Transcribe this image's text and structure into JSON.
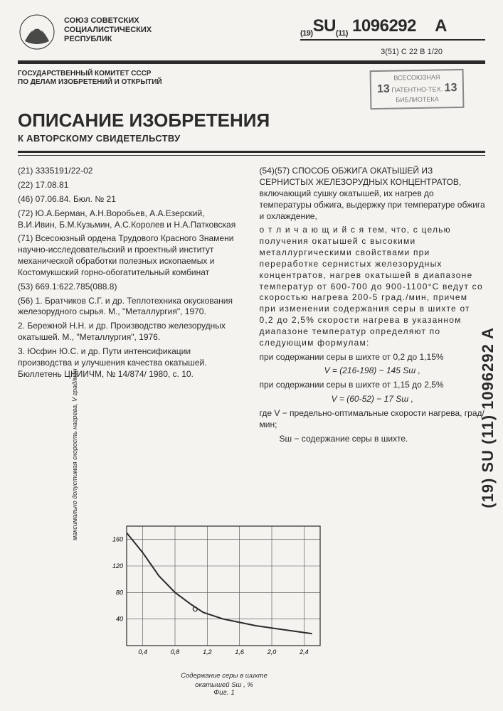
{
  "header": {
    "union_label": "СОЮЗ СОВЕТСКИХ\nСОЦИАЛИСТИЧЕСКИХ\nРЕСПУБЛИК",
    "patent_prefix": "(19)",
    "patent_country": "SU",
    "patent_sub": "(11)",
    "patent_number": "1096292",
    "patent_suffix": "A",
    "ipc_label": "3(51) С 22 В 1/20"
  },
  "committee": {
    "line1": "ГОСУДАРСТВЕННЫЙ КОМИТЕТ СССР",
    "line2": "ПО ДЕЛАМ ИЗОБРЕТЕНИЙ И ОТКРЫТИЙ"
  },
  "stamp": {
    "top": "ВСЕСОЮЗНАЯ",
    "left_num": "13",
    "right_num": "13",
    "mid": "ПАТЕНТНО-ТЕХ.",
    "bottom": "БИБЛИОТЕКА"
  },
  "titles": {
    "main": "ОПИСАНИЕ ИЗОБРЕТЕНИЯ",
    "sub": "К АВТОРСКОМУ СВИДЕТЕЛЬСТВУ"
  },
  "left_col": {
    "f21": "(21) 3335191/22-02",
    "f22": "(22) 17.08.81",
    "f46": "(46) 07.06.84.  Бюл. № 21",
    "f72": "(72) Ю.А.Берман, А.Н.Воробьев, А.А.Езерский, В.И.Ивин, Б.М.Кузьмин, А.С.Королев и Н.А.Патковская",
    "f71": "(71) Всесоюзный ордена Трудового Красного Знамени научно-исследовательский и проектный институт механической обработки полезных ископаемых и Костомукшский горно-обогатительный комбинат",
    "f53": "(53) 669.1:622.785(088.8)",
    "f56_1": "(56) 1. Братчиков С.Г. и др. Теплотехника окускования железорудного сырья. М., \"Металлургия\", 1970.",
    "f56_2": "2. Бережной Н.Н. и др. Производство железорудных окатышей. М., \"Металлургия\", 1976.",
    "f56_3": "3. Юсфин Ю.С. и др. Пути интенсификации производства и улучшения качества окатышей. Бюллетень ЦНИИЧМ, № 14/874/ 1980, с. 10."
  },
  "right_col": {
    "f54": "(54)(57) СПОСОБ ОБЖИГА ОКАТЫШЕЙ ИЗ СЕРНИСТЫХ ЖЕЛЕЗОРУДНЫХ КОНЦЕНТРАТОВ, включающий сушку окатышей, их нагрев до температуры обжига, выдержку при температуре обжига и охлаждение,",
    "diff": "о т л и ч а ю щ и й с я  тем, что, с целью получения окатышей с высокими металлургическими свойствами при переработке сернистых железорудных концентратов, нагрев окатышей в диапазоне температур от 600-700 до 900-1100°С ведут со скоростью нагрева 200-5 град./мин, причем при изменении содержания серы в шихте от 0,2 до 2,5% скорости нагрева в указанном диапазоне температур определяют по следующим формулам:",
    "cond1": "при содержании серы в шихте от 0,2 до 1,15%",
    "formula1": "V = (216-198) − 145 Sш ,",
    "cond2": "при содержании серы в шихте от 1,15 до 2,5%",
    "formula2": "V = (60-52) − 17 Sш ,",
    "where_v": "где V − предельно-оптимальные скорости нагрева, град/мин;",
    "where_s": "Sш − содержание серы в шихте."
  },
  "side_code": "(19) SU (11) 1096292  A",
  "chart": {
    "type": "line",
    "x_values": [
      0.2,
      0.4,
      0.6,
      0.8,
      1.0,
      1.15,
      1.4,
      1.8,
      2.2,
      2.5
    ],
    "y_values": [
      170,
      140,
      105,
      80,
      62,
      50,
      40,
      30,
      23,
      18
    ],
    "x_ticks": [
      0.4,
      0.8,
      1.2,
      1.6,
      2.0,
      2.4
    ],
    "y_ticks": [
      40,
      80,
      120,
      160
    ],
    "xlim": [
      0.2,
      2.6
    ],
    "ylim": [
      0,
      180
    ],
    "line_color": "#2a2a2a",
    "line_width": 2,
    "grid_color": "#4a4a4a",
    "grid_width": 0.6,
    "background": "#f5f3ef",
    "tick_fontsize": 9,
    "ylabel": "максимально допустимая скорость нагрева, V град/мин",
    "xlabel_line1": "Содержание серы в шихте",
    "xlabel_line2": "окатышей Sш , %",
    "fig_label": "Фиг. 1",
    "markers": [
      {
        "x": 1.05,
        "y": 55
      }
    ]
  }
}
